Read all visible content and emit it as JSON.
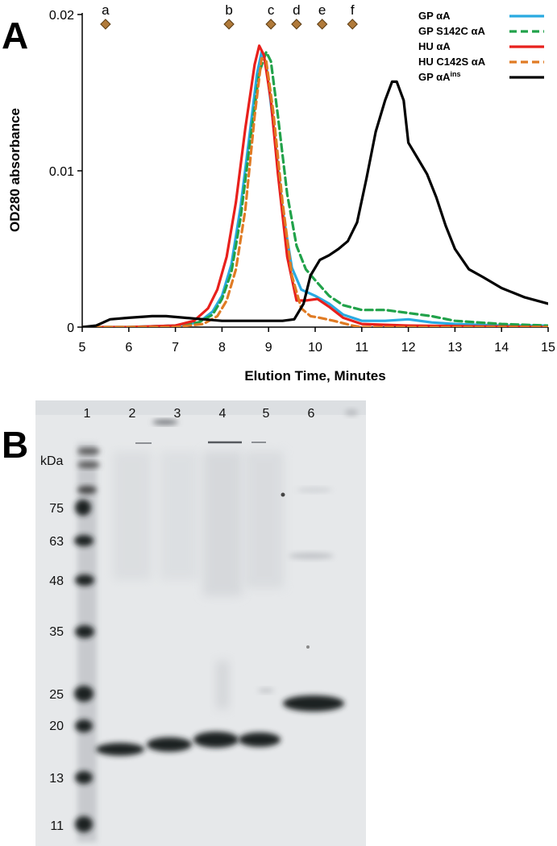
{
  "chart_data": [
    {
      "type": "line",
      "panel_label": "A",
      "xlabel": "Elution Time, Minutes",
      "ylabel": "OD280 absorbance",
      "xlim": [
        5,
        15
      ],
      "ylim": [
        0,
        0.02
      ],
      "x_ticks": [
        "5",
        "6",
        "7",
        "8",
        "9",
        "10",
        "11",
        "12",
        "13",
        "14",
        "15"
      ],
      "y_ticks": [
        {
          "value": 0,
          "label": "0"
        },
        {
          "value": 0.01,
          "label": "0.01"
        },
        {
          "value": 0.02,
          "label": "0.02"
        }
      ],
      "legend_position": "top-right",
      "markers": [
        {
          "label": "a",
          "x": 5.5
        },
        {
          "label": "b",
          "x": 8.15
        },
        {
          "label": "c",
          "x": 9.05
        },
        {
          "label": "d",
          "x": 9.6
        },
        {
          "label": "e",
          "x": 10.15
        },
        {
          "label": "f",
          "x": 10.8
        }
      ],
      "marker_color": "#b07a3a",
      "series": [
        {
          "name": "GP αA",
          "legend_main": "GP αA",
          "legend_sup": "",
          "color": "#29aae1",
          "dash": "solid",
          "points": [
            [
              5,
              0
            ],
            [
              6,
              0
            ],
            [
              7,
              0.0001
            ],
            [
              7.5,
              0.0003
            ],
            [
              7.8,
              0.001
            ],
            [
              8.0,
              0.002
            ],
            [
              8.2,
              0.004
            ],
            [
              8.4,
              0.0077
            ],
            [
              8.6,
              0.0125
            ],
            [
              8.75,
              0.0162
            ],
            [
              8.85,
              0.0176
            ],
            [
              8.95,
              0.0168
            ],
            [
              9.1,
              0.013
            ],
            [
              9.3,
              0.0075
            ],
            [
              9.5,
              0.0038
            ],
            [
              9.7,
              0.0024
            ],
            [
              10.0,
              0.002
            ],
            [
              10.3,
              0.0015
            ],
            [
              10.6,
              0.0008
            ],
            [
              11,
              0.0004
            ],
            [
              11.5,
              0.0004
            ],
            [
              12,
              0.0005
            ],
            [
              12.5,
              0.0003
            ],
            [
              13,
              0.0002
            ],
            [
              14,
              0.0001
            ],
            [
              15,
              0.0001
            ]
          ]
        },
        {
          "name": "GP S142C αA",
          "legend_main": "GP S142C αA",
          "legend_sup": "",
          "color": "#21a24a",
          "dash": "dashed",
          "points": [
            [
              5,
              0
            ],
            [
              6,
              0
            ],
            [
              7,
              0.0001
            ],
            [
              7.5,
              0.0003
            ],
            [
              7.8,
              0.0008
            ],
            [
              8.0,
              0.0018
            ],
            [
              8.2,
              0.0035
            ],
            [
              8.4,
              0.007
            ],
            [
              8.6,
              0.0118
            ],
            [
              8.8,
              0.0163
            ],
            [
              8.95,
              0.0176
            ],
            [
              9.05,
              0.017
            ],
            [
              9.2,
              0.0135
            ],
            [
              9.4,
              0.0085
            ],
            [
              9.6,
              0.0052
            ],
            [
              9.8,
              0.0037
            ],
            [
              10.0,
              0.003
            ],
            [
              10.3,
              0.002
            ],
            [
              10.6,
              0.0014
            ],
            [
              11,
              0.0011
            ],
            [
              11.5,
              0.0011
            ],
            [
              12,
              0.0009
            ],
            [
              12.5,
              0.0007
            ],
            [
              13,
              0.0004
            ],
            [
              14,
              0.0002
            ],
            [
              15,
              0.0001
            ]
          ]
        },
        {
          "name": "HU αA",
          "legend_main": "HU αA",
          "legend_sup": "",
          "color": "#e8201c",
          "dash": "solid",
          "points": [
            [
              5,
              0
            ],
            [
              6,
              0
            ],
            [
              7,
              0.0001
            ],
            [
              7.4,
              0.0004
            ],
            [
              7.7,
              0.0012
            ],
            [
              7.9,
              0.0024
            ],
            [
              8.1,
              0.0045
            ],
            [
              8.3,
              0.008
            ],
            [
              8.5,
              0.0127
            ],
            [
              8.7,
              0.0168
            ],
            [
              8.8,
              0.018
            ],
            [
              8.9,
              0.0174
            ],
            [
              9.05,
              0.0145
            ],
            [
              9.2,
              0.0098
            ],
            [
              9.4,
              0.0045
            ],
            [
              9.6,
              0.0017
            ],
            [
              9.8,
              0.0017
            ],
            [
              10.05,
              0.0018
            ],
            [
              10.3,
              0.0013
            ],
            [
              10.6,
              0.0006
            ],
            [
              11,
              0.0002
            ],
            [
              12,
              0.0001
            ],
            [
              15,
              0
            ]
          ]
        },
        {
          "name": "HU C142S αA",
          "legend_main": "HU C142S αA",
          "legend_sup": "",
          "color": "#e07b24",
          "dash": "dashed",
          "points": [
            [
              5,
              0
            ],
            [
              6,
              0
            ],
            [
              7,
              0
            ],
            [
              7.6,
              0.0002
            ],
            [
              7.9,
              0.0007
            ],
            [
              8.1,
              0.0017
            ],
            [
              8.3,
              0.0037
            ],
            [
              8.5,
              0.0075
            ],
            [
              8.7,
              0.0135
            ],
            [
              8.85,
              0.0172
            ],
            [
              8.95,
              0.017
            ],
            [
              9.1,
              0.0138
            ],
            [
              9.3,
              0.008
            ],
            [
              9.5,
              0.0033
            ],
            [
              9.7,
              0.0012
            ],
            [
              9.9,
              0.0007
            ],
            [
              10.1,
              0.0006
            ],
            [
              10.4,
              0.0004
            ],
            [
              10.8,
              0.0001
            ],
            [
              11,
              0
            ],
            [
              15,
              0
            ]
          ]
        },
        {
          "name": "GP αAins",
          "legend_main": "GP αA",
          "legend_sup": "ins",
          "color": "#000000",
          "dash": "solid",
          "points": [
            [
              5,
              0
            ],
            [
              5.3,
              0.0001
            ],
            [
              5.6,
              0.0005
            ],
            [
              6,
              0.0006
            ],
            [
              6.5,
              0.0007
            ],
            [
              6.8,
              0.0007
            ],
            [
              7.2,
              0.0006
            ],
            [
              7.6,
              0.0005
            ],
            [
              8,
              0.0004
            ],
            [
              8.5,
              0.0004
            ],
            [
              9,
              0.0004
            ],
            [
              9.3,
              0.0004
            ],
            [
              9.55,
              0.0005
            ],
            [
              9.75,
              0.0015
            ],
            [
              9.9,
              0.0033
            ],
            [
              10.1,
              0.0043
            ],
            [
              10.3,
              0.0046
            ],
            [
              10.5,
              0.005
            ],
            [
              10.7,
              0.0055
            ],
            [
              10.9,
              0.0067
            ],
            [
              11.1,
              0.0095
            ],
            [
              11.3,
              0.0125
            ],
            [
              11.5,
              0.0145
            ],
            [
              11.65,
              0.0157
            ],
            [
              11.75,
              0.0157
            ],
            [
              11.9,
              0.0145
            ],
            [
              12.0,
              0.0118
            ],
            [
              12.2,
              0.0108
            ],
            [
              12.4,
              0.0098
            ],
            [
              12.6,
              0.0083
            ],
            [
              12.8,
              0.0065
            ],
            [
              13,
              0.005
            ],
            [
              13.3,
              0.0037
            ],
            [
              13.6,
              0.0032
            ],
            [
              14,
              0.0025
            ],
            [
              14.5,
              0.0019
            ],
            [
              15,
              0.0015
            ]
          ]
        }
      ]
    },
    {
      "type": "gel",
      "panel_label": "B",
      "lane_numbers": [
        "1",
        "2",
        "3",
        "4",
        "5",
        "6"
      ],
      "unit_label": "kDa",
      "ladder_kda": [
        "75",
        "63",
        "48",
        "35",
        "25",
        "20",
        "13",
        "11"
      ],
      "colors": {
        "gel_background": "#e6e8ea",
        "band": "#1e2024"
      }
    }
  ]
}
